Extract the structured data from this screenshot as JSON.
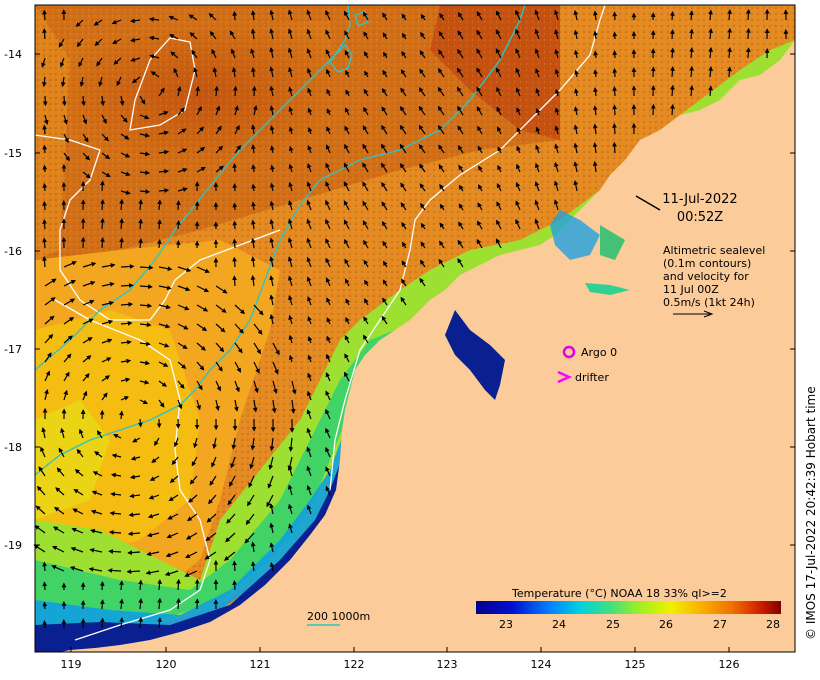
{
  "map": {
    "lon_ticks": [
      "119",
      "120",
      "121",
      "122",
      "123",
      "124",
      "125",
      "126"
    ],
    "lat_ticks": [
      "-14",
      "-15",
      "-16",
      "-17",
      "-18",
      "-19"
    ],
    "timestamp_date": "11-Jul-2022",
    "timestamp_time": "00:52Z",
    "legend_lines": [
      "Altimetric sealevel",
      "(0.1m contours)",
      "and velocity for",
      "11 Jul 00Z",
      "0.5m/s (1kt 24h)"
    ],
    "argo_label": "Argo 0",
    "drifter_label": "drifter",
    "depth_label": "200  1000m",
    "colorbar_title": "Temperature (°C) NOAA 18 33% ql>=2",
    "colorbar_ticks": [
      "23",
      "24",
      "25",
      "26",
      "27",
      "28"
    ],
    "credit": "© IMOS 17-Jul-2022 20:42:39 Hobart time",
    "colors": {
      "land": "#fbcb9a",
      "contour_200m": "#2ec4c4",
      "argo": "#e000e0",
      "drifter": "#ff00ff"
    }
  }
}
